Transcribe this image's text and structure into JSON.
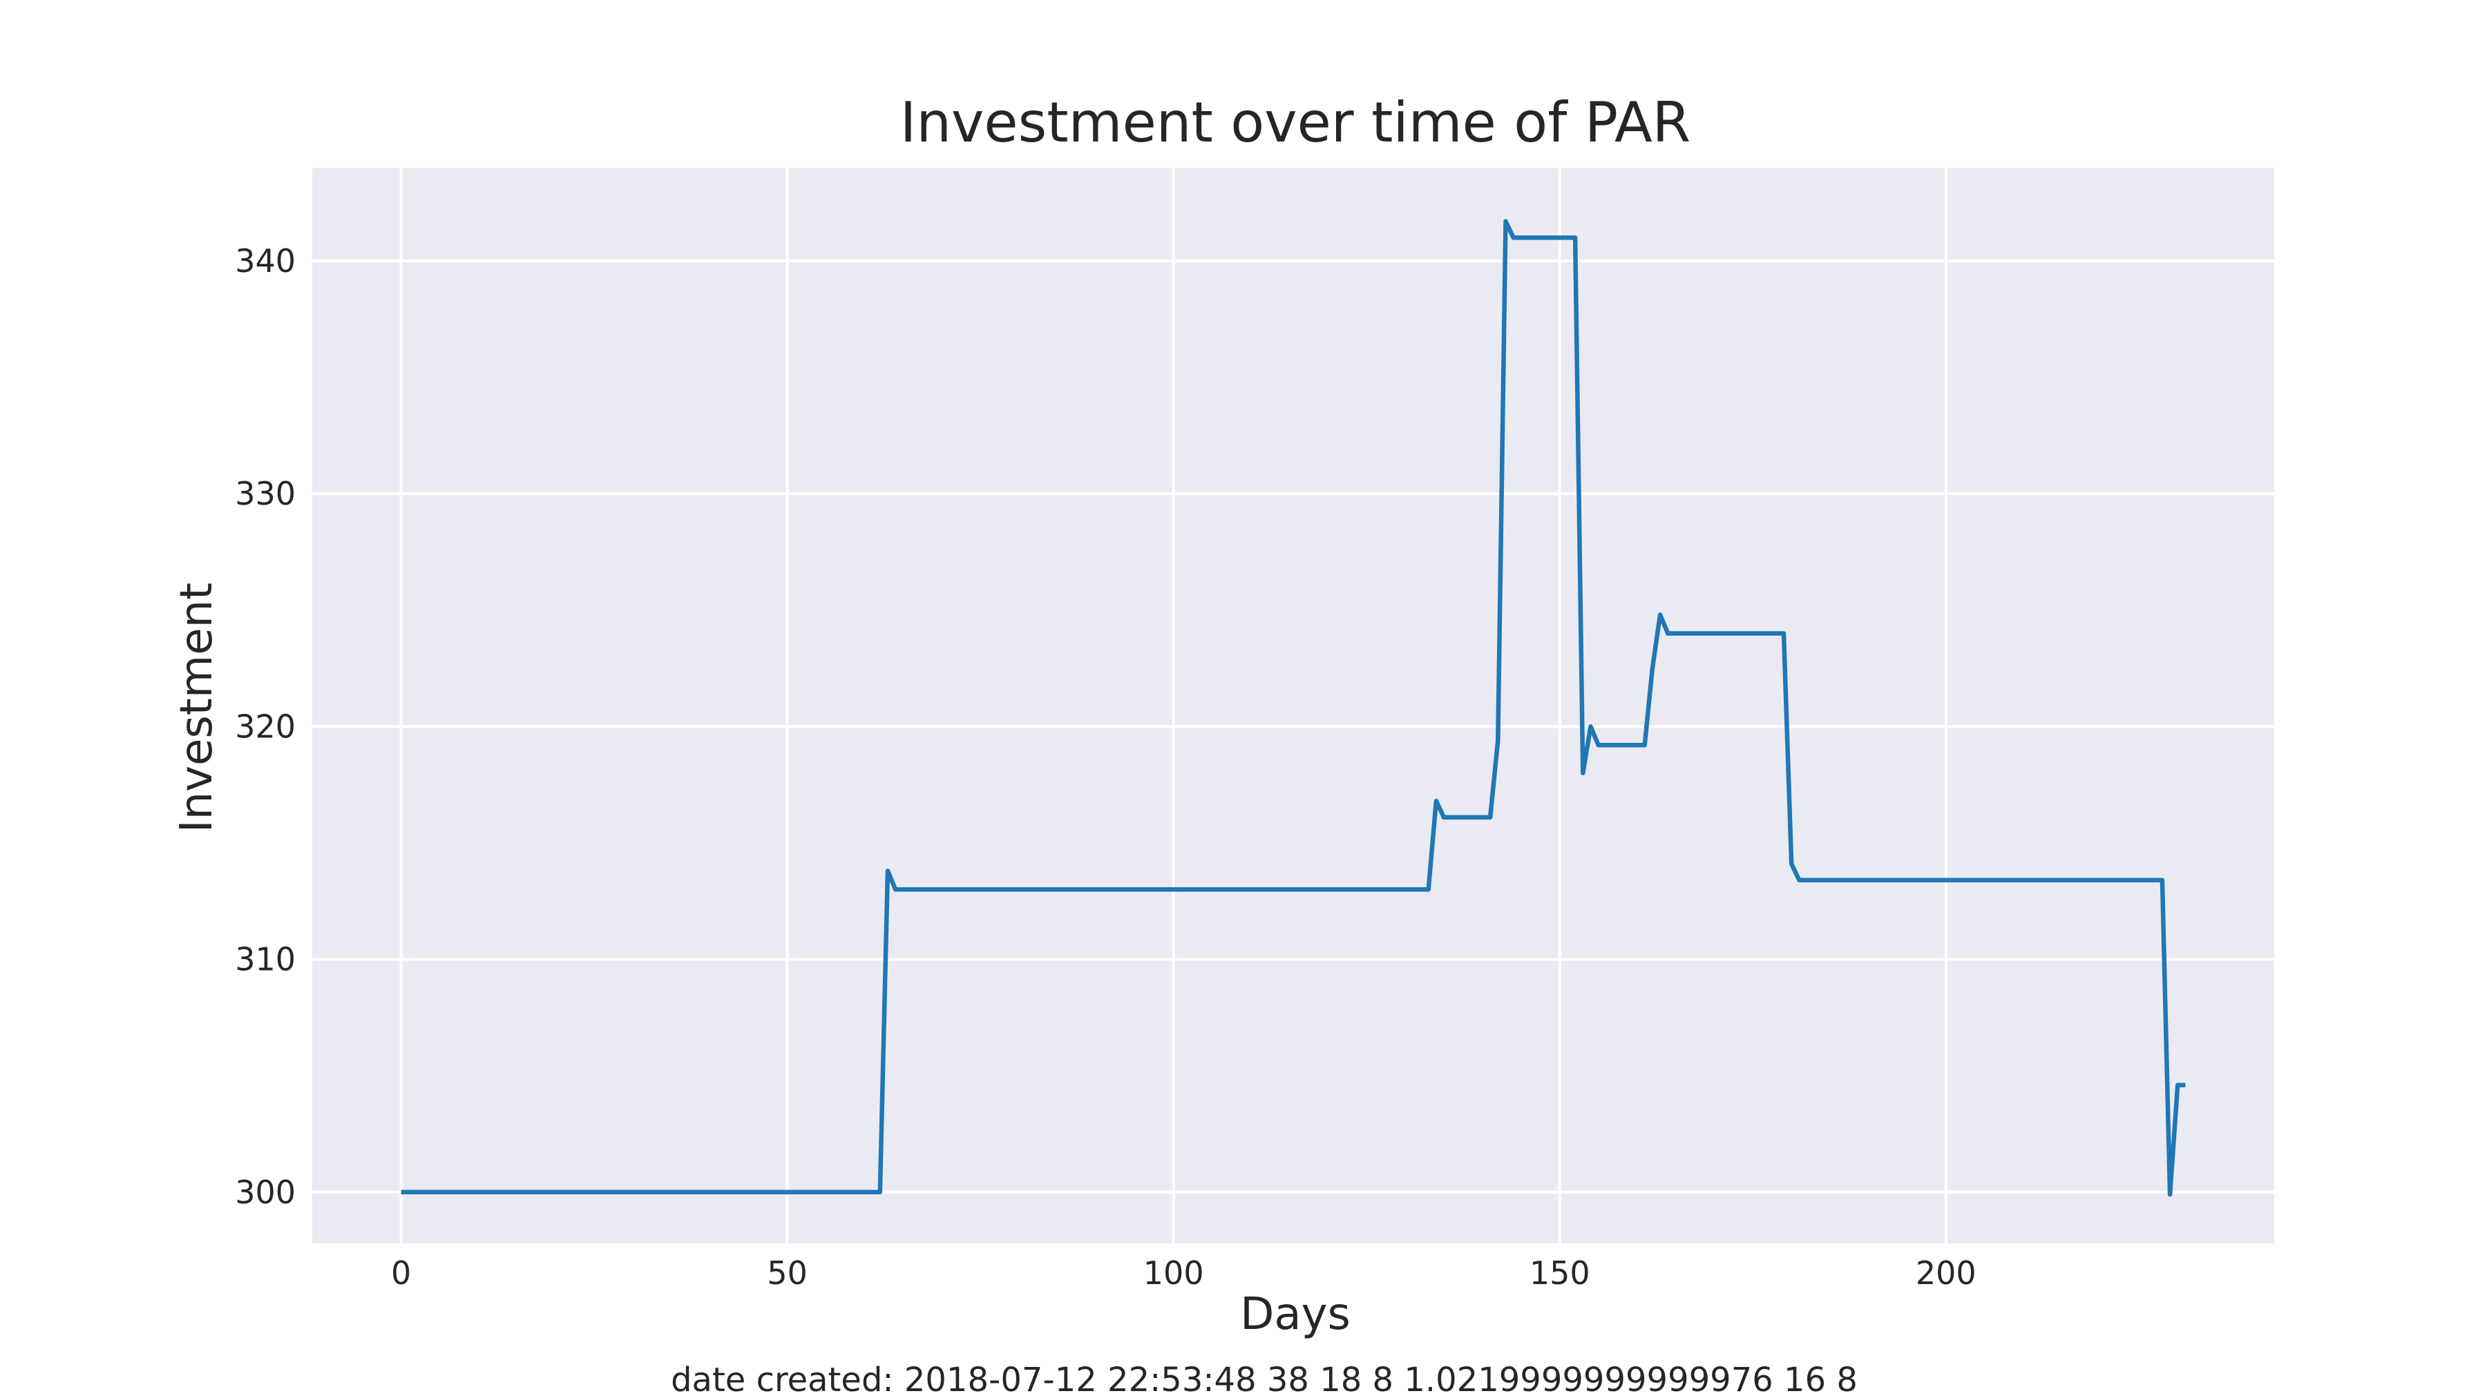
{
  "chart_data": {
    "type": "line",
    "title": "Investment over time of PAR",
    "xlabel": "Days",
    "ylabel": "Investment",
    "xlim": [
      -11.5,
      242.5
    ],
    "ylim": [
      297.8,
      344.0
    ],
    "grid": true,
    "xticks": [
      0,
      50,
      100,
      150,
      200
    ],
    "yticks": [
      300,
      310,
      320,
      330,
      340
    ],
    "series": [
      {
        "color": "#1f77b4",
        "x": [
          0,
          62,
          63,
          64,
          133,
          134,
          135,
          141,
          142,
          143,
          144,
          152,
          153,
          154,
          155,
          161,
          162,
          163,
          164,
          179,
          180,
          181,
          228,
          229,
          230,
          231
        ],
        "y": [
          300.0,
          300.0,
          313.8,
          313.0,
          313.0,
          316.8,
          316.1,
          316.1,
          319.4,
          341.7,
          341.0,
          341.0,
          318.0,
          320.0,
          319.2,
          319.2,
          322.5,
          324.8,
          324.0,
          324.0,
          314.1,
          313.4,
          313.4,
          299.9,
          304.6,
          304.6
        ]
      }
    ]
  },
  "footer": {
    "text": "date created: 2018-07-12 22:53:48 38 18 8 1.0219999999999976 16 8"
  }
}
